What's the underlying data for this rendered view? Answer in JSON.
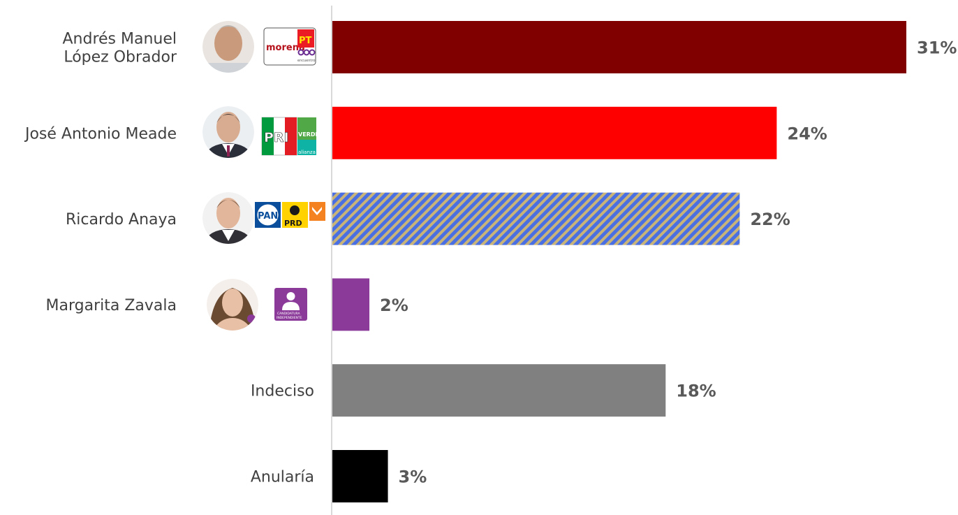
{
  "chart_data": {
    "type": "bar",
    "orientation": "horizontal",
    "title": "",
    "xlabel": "",
    "ylabel": "",
    "grid": false,
    "xlim": [
      0,
      31
    ],
    "categories": [
      "Andrés Manuel López Obrador",
      "José Antonio Meade",
      "Ricardo Anaya",
      "Margarita Zavala",
      "Indeciso",
      "Anularía"
    ],
    "category_lines": [
      [
        "Andrés Manuel",
        "López Obrador"
      ],
      [
        "José Antonio Meade"
      ],
      [
        "Ricardo Anaya"
      ],
      [
        "Margarita Zavala"
      ],
      [
        "Indeciso"
      ],
      [
        "Anularía"
      ]
    ],
    "values": [
      31,
      24,
      22,
      2,
      18,
      3
    ],
    "value_labels": [
      "31%",
      "24%",
      "22%",
      "2%",
      "18%",
      "3%"
    ],
    "colors": [
      "#800000",
      "#ff0000",
      "pattern:#4a6fe3/#c8b479",
      "#8b3a9a",
      "#808080",
      "#000000"
    ],
    "candidate_images": [
      "avatar",
      "avatar",
      "avatar",
      "avatar",
      "",
      ""
    ],
    "party_logos": [
      {
        "name": "morena-pt-encuentro-logo",
        "texts": [
          "morena",
          "PT",
          "encuentro"
        ]
      },
      {
        "name": "pri-verde-alianza-logo",
        "texts": [
          "PRI",
          "VERDE",
          "alianza"
        ]
      },
      {
        "name": "pan-prd-mc-logo",
        "texts": [
          "PAN",
          "PRD"
        ]
      },
      {
        "name": "candidatura-independiente-logo",
        "texts": [
          "CANDIDATURA",
          "INDEPENDIENTE"
        ]
      }
    ]
  }
}
